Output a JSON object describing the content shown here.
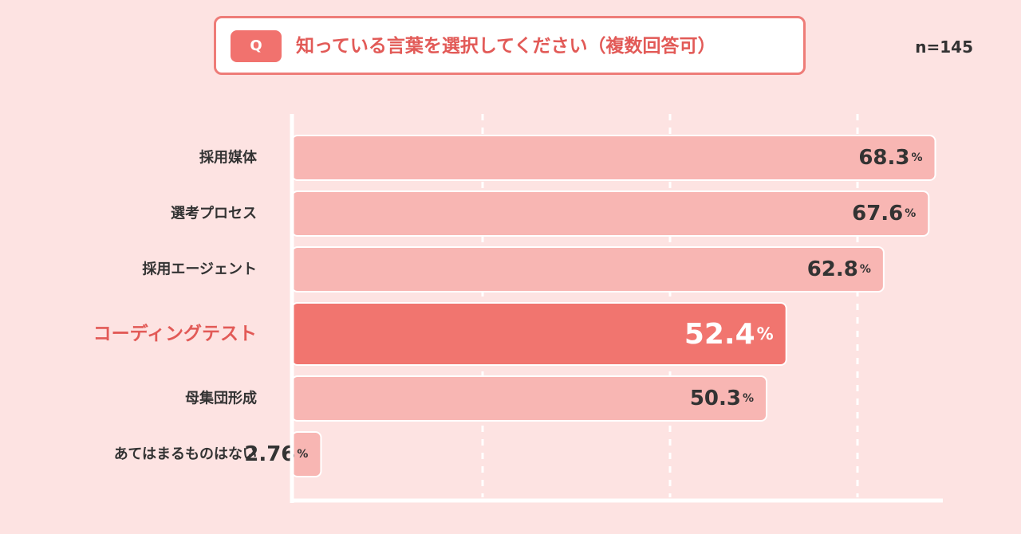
{
  "question": {
    "badge": "Q",
    "text": "知っている言葉を選択してください（複数回答可）"
  },
  "sample_size": "n=145",
  "colors": {
    "background": "#fde3e2",
    "bar": "#f8b6b3",
    "bar_highlight": "#f1756f",
    "label": "#333333",
    "label_highlight": "#e25a57",
    "border": "#ee7c78"
  },
  "chart_data": {
    "type": "bar",
    "orientation": "horizontal",
    "unit": "%",
    "xlim": [
      0,
      80
    ],
    "gridlines": [
      20,
      40,
      60,
      80
    ],
    "categories": [
      "採用媒体",
      "選考プロセス",
      "採用エージェント",
      "コーディングテスト",
      "母集団形成",
      "あてはまるものはない"
    ],
    "values": [
      68.3,
      67.6,
      62.8,
      52.4,
      50.3,
      2.76
    ],
    "value_labels": [
      "68.3",
      "67.6",
      "62.8",
      "52.4",
      "50.3",
      "2.76"
    ],
    "highlight_index": 3
  }
}
